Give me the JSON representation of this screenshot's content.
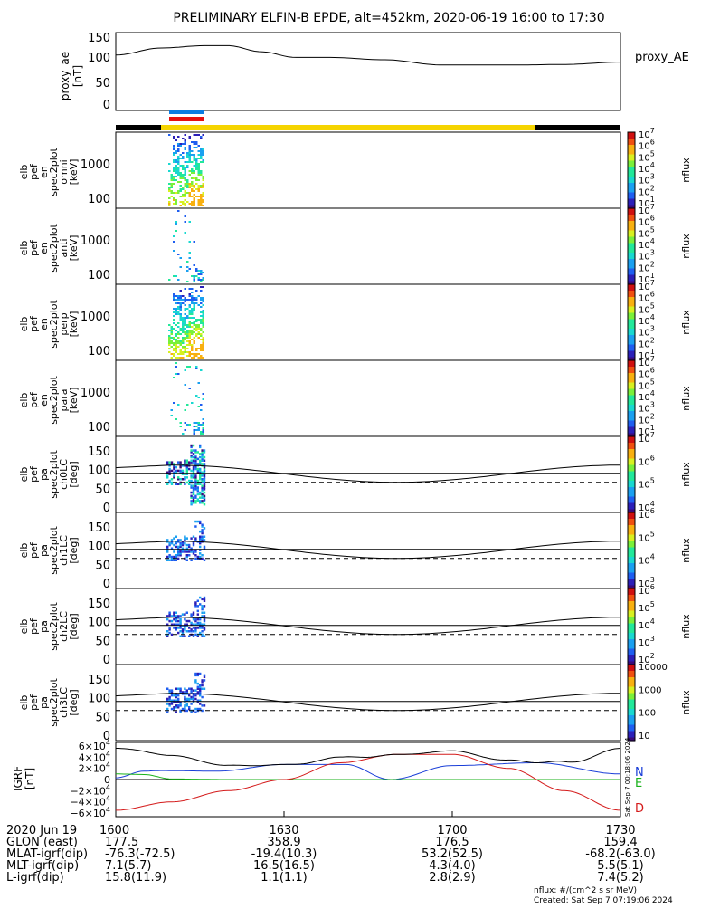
{
  "title": "PRELIMINARY ELFIN-B EPDE, alt=452km, 2020-06-19 16:00 to 17:30",
  "colors": {
    "black": "#000000",
    "yellow": "#f5d400",
    "blue": "#0b7de3",
    "red": "#e61010",
    "curve_n": "#1a3fd8",
    "curve_e": "#18b21a",
    "curve_d": "#d41a1a"
  },
  "ae": {
    "ylabel": [
      "proxy_ae",
      "[nT]"
    ],
    "legend": "proxy_AE",
    "ticks": [
      "150",
      "100",
      "50",
      "0"
    ],
    "ylim": [
      0,
      155
    ]
  },
  "status_bars": {
    "yellow_range_hhmm": [
      "16:08",
      "17:23"
    ],
    "blue_red_range_hhmm": [
      "16:10",
      "16:17"
    ]
  },
  "spec_panels": [
    {
      "ylabel": [
        "elb",
        "pef",
        "en",
        "spec2plot",
        "omni",
        "[keV]"
      ],
      "ticks": [
        "1000",
        "100"
      ]
    },
    {
      "ylabel": [
        "elb",
        "pef",
        "en",
        "spec2plot",
        "anti",
        "[keV]"
      ],
      "ticks": [
        "1000",
        "100"
      ]
    },
    {
      "ylabel": [
        "elb",
        "pef",
        "en",
        "spec2plot",
        "perp",
        "[keV]"
      ],
      "ticks": [
        "1000",
        "100"
      ]
    },
    {
      "ylabel": [
        "elb",
        "pef",
        "en",
        "spec2plot",
        "para",
        "[keV]"
      ],
      "ticks": [
        "1000",
        "100"
      ]
    }
  ],
  "pa_panels": [
    {
      "ylabel": [
        "elb",
        "pef",
        "pa",
        "spec2plot",
        "ch0LC",
        "[deg]"
      ],
      "ticks": [
        "150",
        "100",
        "50",
        "0"
      ]
    },
    {
      "ylabel": [
        "elb",
        "pef",
        "pa",
        "spec2plot",
        "ch1LC",
        "[deg]"
      ],
      "ticks": [
        "150",
        "100",
        "50",
        "0"
      ]
    },
    {
      "ylabel": [
        "elb",
        "pef",
        "pa",
        "spec2plot",
        "ch2LC",
        "[deg]"
      ],
      "ticks": [
        "150",
        "100",
        "50",
        "0"
      ]
    },
    {
      "ylabel": [
        "elb",
        "pef",
        "pa",
        "spec2plot",
        "ch3LC",
        "[deg]"
      ],
      "ticks": [
        "150",
        "100",
        "50",
        "0"
      ]
    }
  ],
  "colorbars": [
    {
      "label": "nflux",
      "ticks": [
        "10",
        "10",
        "10",
        "10",
        "10",
        "10",
        "10"
      ],
      "exps": [
        "7",
        "6",
        "5",
        "4",
        "3",
        "2",
        "1"
      ]
    },
    {
      "label": "nflux",
      "ticks": [
        "10",
        "10",
        "10",
        "10",
        "10",
        "10",
        "10"
      ],
      "exps": [
        "7",
        "6",
        "5",
        "4",
        "3",
        "2",
        "1"
      ]
    },
    {
      "label": "nflux",
      "ticks": [
        "10",
        "10",
        "10",
        "10",
        "10",
        "10",
        "10"
      ],
      "exps": [
        "7",
        "6",
        "5",
        "4",
        "3",
        "2",
        "1"
      ]
    },
    {
      "label": "nflux",
      "ticks": [
        "10",
        "10",
        "10",
        "10",
        "10",
        "10",
        "10"
      ],
      "exps": [
        "7",
        "6",
        "5",
        "4",
        "3",
        "2",
        "1"
      ]
    },
    {
      "label": "nflux",
      "ticks": [
        "10",
        "10",
        "10",
        "10"
      ],
      "exps": [
        "7",
        "6",
        "5",
        "4"
      ]
    },
    {
      "label": "nflux",
      "ticks": [
        "10",
        "10",
        "10",
        "10"
      ],
      "exps": [
        "6",
        "5",
        "4",
        "3"
      ]
    },
    {
      "label": "nflux",
      "ticks": [
        "10",
        "10",
        "10",
        "10",
        "10"
      ],
      "exps": [
        "6",
        "5",
        "4",
        "3",
        "2"
      ]
    },
    {
      "label": "nflux",
      "ticks": [
        "10000",
        "1000",
        "100",
        "10"
      ],
      "exps": [
        "",
        "",
        "",
        ""
      ]
    }
  ],
  "igrf": {
    "ylabel": [
      "IGRF",
      "[nT]"
    ],
    "ticks": [
      "6×10",
      "4×10",
      "2×10",
      "0",
      "−2×10",
      "−4×10",
      "−6×10"
    ],
    "tick_exps": [
      "4",
      "4",
      "4",
      "",
      "4",
      "4",
      "4"
    ],
    "legend": [
      "N",
      "E",
      "D"
    ],
    "stamp": "Sat Sep  7 00:18:06 2024"
  },
  "time_axis": {
    "labels": [
      "1600",
      "1630",
      "1700",
      "1730"
    ],
    "date": "2020 Jun 19"
  },
  "ephemeris": [
    {
      "label": "GLON (east)",
      "values": [
        "177.5",
        "358.9",
        "176.5",
        "159.4"
      ]
    },
    {
      "label": "MLAT-igrf(dip)",
      "values": [
        "-76.3(-72.5)",
        "-19.4(10.3)",
        "53.2(52.5)",
        "-68.2(-63.0)"
      ]
    },
    {
      "label": "MLT-igrf(dip)",
      "values": [
        "7.1(5.7)",
        "16.5(16.5)",
        "4.3(4.0)",
        "5.5(5.1)"
      ]
    },
    {
      "label": "L-igrf(dip)",
      "values": [
        "15.8(11.9)",
        "1.1(1.1)",
        "2.8(2.9)",
        "7.4(5.2)"
      ]
    }
  ],
  "footer": {
    "units": "nflux: #/(cm^2 s sr MeV)",
    "created": "Created: Sat Sep  7 07:19:06 2024"
  },
  "chart_data": {
    "type": "line",
    "title": "PRELIMINARY ELFIN-B EPDE, alt=452km, 2020-06-19 16:00 to 17:30",
    "x_range_hhmm": [
      "16:00",
      "17:30"
    ],
    "x_tick_labels": [
      "1600",
      "1630",
      "1700",
      "1730"
    ],
    "series": [
      {
        "name": "proxy_AE",
        "x_min": [
          0,
          8,
          16,
          20,
          26,
          32,
          38,
          48,
          58,
          65,
          72,
          80,
          90
        ],
        "values": [
          110,
          125,
          130,
          130,
          117,
          105,
          105,
          100,
          89,
          89,
          89,
          90,
          95
        ]
      },
      {
        "name": "N",
        "x_min": [
          0,
          5,
          8,
          18,
          30,
          41,
          49,
          60,
          75,
          90
        ],
        "values": [
          3000,
          15000,
          16000,
          15000,
          27000,
          27000,
          0,
          25000,
          30000,
          10000
        ]
      },
      {
        "name": "E",
        "x_min": [
          0,
          5,
          10,
          20,
          90
        ],
        "values": [
          10000,
          9000,
          1000,
          0,
          0
        ]
      },
      {
        "name": "D",
        "x_min": [
          0,
          10,
          20,
          30,
          40,
          50,
          60,
          70,
          80,
          90
        ],
        "values": [
          -55000,
          -40000,
          -20000,
          0,
          30000,
          45000,
          45000,
          20000,
          -20000,
          -55000
        ]
      }
    ],
    "pa_lines": {
      "lc_deg_solid_max": 112,
      "lc_deg_solid_min": 66,
      "horizontal_deg": 90,
      "dashed_deg": 66
    }
  }
}
